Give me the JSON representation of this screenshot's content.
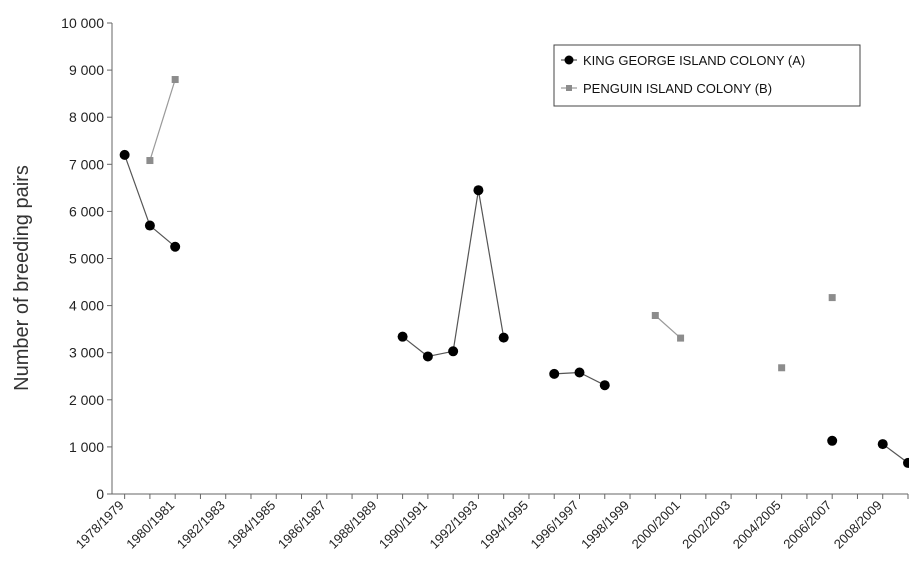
{
  "chart_data": {
    "type": "line",
    "ylabel": "Number of breeding pairs",
    "xlabel": "",
    "ylim": [
      0,
      10000
    ],
    "yticks": [
      "0",
      "1 000",
      "2 000",
      "3 000",
      "4 000",
      "5 000",
      "6 000",
      "7 000",
      "8 000",
      "9 000",
      "10 000"
    ],
    "x_tick_labels": [
      "1978/1979",
      "1980/1981",
      "1982/1983",
      "1984/1985",
      "1986/1987",
      "1988/1989",
      "1990/1991",
      "1992/1993",
      "1994/1995",
      "1996/1997",
      "1998/1999",
      "2000/2001",
      "2002/2003",
      "2004/2005",
      "2006/2007",
      "2008/2009"
    ],
    "categories": [
      "1978/1979",
      "1979/1980",
      "1980/1981",
      "1981/1982",
      "1982/1983",
      "1983/1984",
      "1984/1985",
      "1985/1986",
      "1986/1987",
      "1987/1988",
      "1988/1989",
      "1989/1990",
      "1990/1991",
      "1991/1992",
      "1992/1993",
      "1993/1994",
      "1994/1995",
      "1995/1996",
      "1996/1997",
      "1997/1998",
      "1998/1999",
      "1999/2000",
      "2000/2001",
      "2001/2002",
      "2002/2003",
      "2003/2004",
      "2004/2005",
      "2005/2006",
      "2006/2007",
      "2007/2008",
      "2008/2009",
      "2009/2010"
    ],
    "legend_position": "top-right",
    "grid": false,
    "series": [
      {
        "name": "KING GEORGE ISLAND COLONY (A)",
        "marker": "circle",
        "color": "#000000",
        "line_color": "#555555",
        "values": [
          7200,
          5700,
          5250,
          null,
          null,
          null,
          null,
          null,
          null,
          null,
          null,
          3340,
          2920,
          3030,
          6450,
          3320,
          null,
          2550,
          2580,
          2310,
          null,
          null,
          null,
          null,
          null,
          null,
          null,
          null,
          1130,
          null,
          1060,
          660
        ]
      },
      {
        "name": "PENGUIN ISLAND COLONY (B)",
        "marker": "square",
        "color": "#8c8c8c",
        "line_color": "#9a9a9a",
        "values": [
          null,
          7080,
          8800,
          null,
          null,
          null,
          null,
          null,
          null,
          null,
          null,
          null,
          null,
          null,
          null,
          null,
          null,
          null,
          null,
          null,
          null,
          3790,
          3310,
          null,
          null,
          null,
          2680,
          null,
          4170,
          null,
          null,
          null
        ]
      }
    ]
  }
}
